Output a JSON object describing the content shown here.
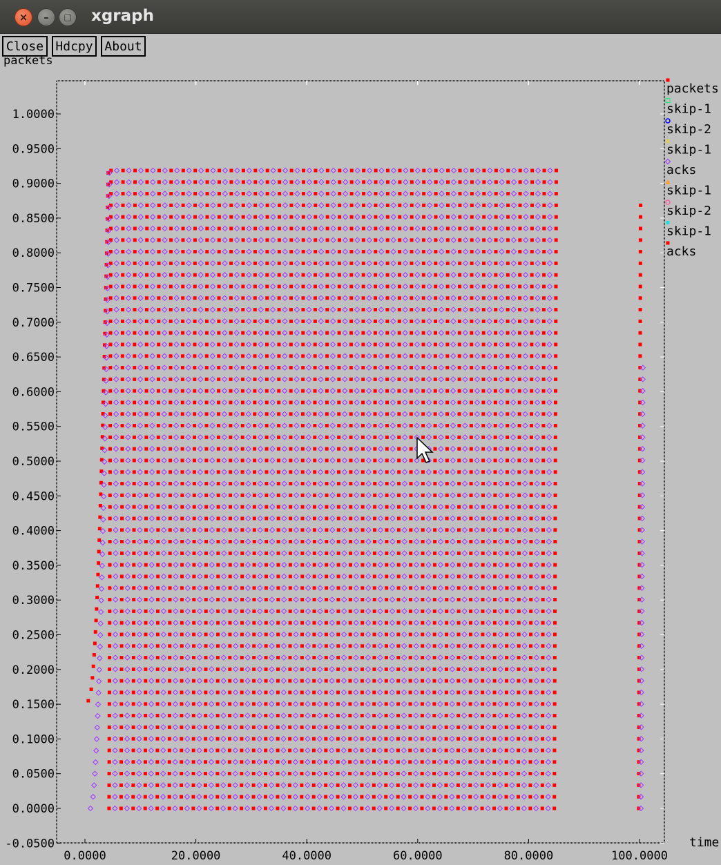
{
  "window": {
    "title": "xgraph"
  },
  "toolbar": {
    "close_label": "Close",
    "hdcpy_label": "Hdcpy",
    "about_label": "About"
  },
  "colors": {
    "background": "#c0c0c0",
    "titlebar": "#3c3b37",
    "packets": "#ff0000",
    "acks": "#a040ff"
  },
  "chart_data": {
    "type": "scatter",
    "xlabel": "time",
    "ylabel": "packets",
    "xlim": [
      -5,
      100
    ],
    "ylim": [
      -0.05,
      1.05
    ],
    "x_ticks": [
      "0.0000",
      "20.0000",
      "40.0000",
      "60.0000",
      "80.0000",
      "100.0000"
    ],
    "y_ticks": [
      "-0.0500",
      "0.0000",
      "0.0500",
      "0.1000",
      "0.1500",
      "0.2000",
      "0.2500",
      "0.3000",
      "0.3500",
      "0.4000",
      "0.4500",
      "0.5000",
      "0.5500",
      "0.6000",
      "0.6500",
      "0.7000",
      "0.7500",
      "0.8000",
      "0.8500",
      "0.9000",
      "0.9500",
      "1.0000"
    ],
    "grid": false,
    "legend_position": "right",
    "legend": [
      {
        "name": "packets",
        "color": "#ff0000",
        "marker": "square"
      },
      {
        "name": "skip-1",
        "color": "#40e080",
        "marker": "square-outline"
      },
      {
        "name": "skip-2",
        "color": "#0000ff",
        "marker": "circle"
      },
      {
        "name": "skip-1",
        "color": "#e8d040",
        "marker": "x"
      },
      {
        "name": "acks",
        "color": "#a040ff",
        "marker": "diamond"
      },
      {
        "name": "skip-1",
        "color": "#ffa020",
        "marker": "triangle"
      },
      {
        "name": "skip-2",
        "color": "#ff60a0",
        "marker": "circle"
      },
      {
        "name": "skip-1",
        "color": "#20e0e0",
        "marker": "square"
      },
      {
        "name": "acks",
        "color": "#ff0000",
        "marker": "square"
      }
    ],
    "series": [
      {
        "name": "packets",
        "color": "#ff0000",
        "marker": "square",
        "pattern": "sawtooth",
        "column_x_start": 4.35,
        "column_x_spacing": 2.17,
        "column_count": 38,
        "y_min": 0.0,
        "y_max": 0.915,
        "y_step": 0.0167,
        "ramp_start": {
          "x": [
            0.6,
            4.2
          ],
          "y": [
            0.155,
            0.915
          ]
        },
        "last_partial_column": {
          "x": 100.2,
          "y_max": 0.87
        }
      },
      {
        "name": "acks",
        "color": "#a040ff",
        "marker": "diamond",
        "pattern": "sawtooth",
        "column_x_start": 5.4,
        "column_x_spacing": 2.17,
        "column_count": 37,
        "y_min": 0.0,
        "y_max": 0.915,
        "y_step": 0.0167,
        "ramp_start": {
          "x": [
            1.0,
            4.4
          ],
          "y": [
            0.0,
            0.915
          ]
        },
        "last_partial_column": {
          "x": 100.6,
          "y_max": 0.63
        }
      }
    ]
  }
}
